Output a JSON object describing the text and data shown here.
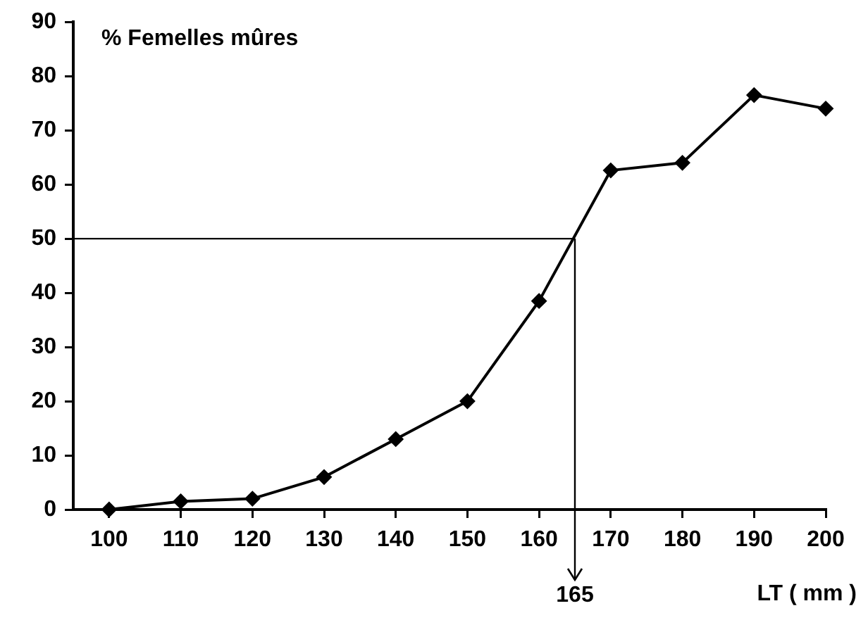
{
  "chart_data": {
    "type": "line",
    "ylabel": "% Femelles mûres",
    "xlabel": "LT ( mm )",
    "x": [
      100,
      110,
      120,
      130,
      140,
      150,
      160,
      170,
      180,
      190,
      200
    ],
    "series": [
      {
        "color": "#000000",
        "values": [
          0,
          1.5,
          2,
          6,
          13,
          20,
          38.5,
          62.6,
          64,
          76.5,
          74
        ]
      }
    ],
    "xlim": [
      95,
      200
    ],
    "xticks": [
      100,
      110,
      120,
      130,
      140,
      150,
      160,
      170,
      180,
      190,
      200
    ],
    "ylim": [
      0,
      90
    ],
    "yticks": [
      0,
      10,
      20,
      30,
      40,
      50,
      60,
      70,
      80,
      90
    ],
    "ref_lines": [
      {
        "axis": "y",
        "value": 50,
        "label": null
      },
      {
        "axis": "x",
        "value": 165,
        "label": "165"
      }
    ],
    "grid": false,
    "legend": false,
    "marker": "diamond",
    "line_style": "solid"
  }
}
